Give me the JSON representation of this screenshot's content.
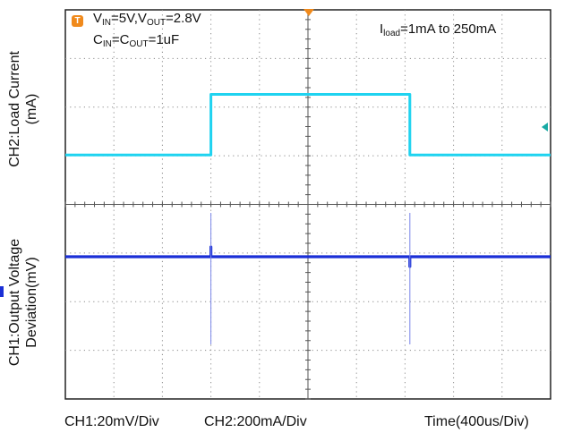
{
  "chart_data": {
    "type": "line",
    "annotations": {
      "vin_label": "V",
      "vin_sub": "IN",
      "vin_value": "=5V,",
      "vout_label": "V",
      "vout_sub": "OUT",
      "vout_value": "=2.8V",
      "cin_label": "C",
      "cin_sub": "IN",
      "cin_eq": "=",
      "cout_label": "C",
      "cout_sub": "OUT",
      "cout_value": "=1uF",
      "iload_label": "I",
      "iload_sub": "load",
      "iload_value": "=1mA to 250mA"
    },
    "ylabel_top": [
      "CH2:Load Current",
      "(mA)"
    ],
    "ylabel_bottom": [
      "CH1:Output Voltage",
      "Deviation(mV)"
    ],
    "xlabel": "Time(400us/Div)",
    "ch1_scale": "CH1:20mV/Div",
    "ch2_scale": "CH2:200mA/Div",
    "x_divisions": 10,
    "y_divisions": 8,
    "trigger_marker": "T",
    "series": [
      {
        "color": "#1fd3f0",
        "x": [
          0,
          3.0,
          3.0,
          7.1,
          7.1,
          10
        ],
        "y": [
          1,
          1,
          250,
          250,
          1,
          1
        ]
      },
      {
        "color": "#1a2fd6",
        "x": [
          0,
          3.0,
          3.0,
          3.0,
          7.1,
          7.1,
          7.1,
          10
        ],
        "y": [
          0,
          0,
          4,
          0,
          0,
          -4,
          0,
          0
        ]
      }
    ],
    "colors": {
      "ch1": "#1a2fd6",
      "ch2": "#1fd3f0",
      "trigger": "#f08a1c",
      "ch2_marker": "#16a9a4"
    }
  }
}
